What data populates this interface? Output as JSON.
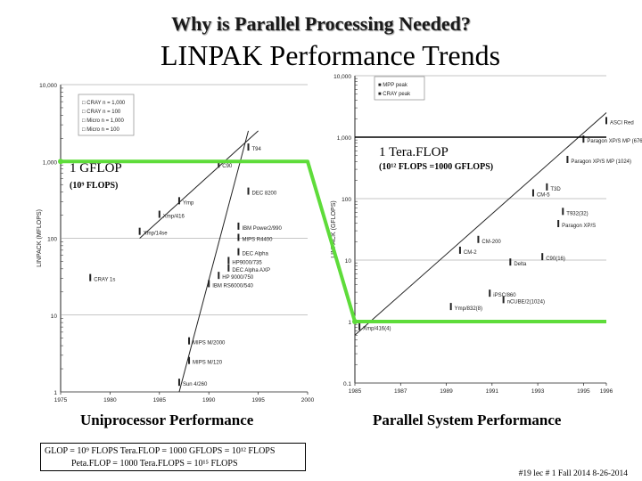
{
  "heading": "Why is Parallel Processing Needed?",
  "title": "LINPAK Performance Trends",
  "captions": {
    "uniprocessor": "Uniprocessor Performance",
    "parallel": "Parallel System Performance"
  },
  "annotations": {
    "gflop": "1 GFLOP",
    "gflop_sub": "(10⁹ FLOPS)",
    "teraflop": "1 Tera.FLOP",
    "teraflop_sub": "(10¹² FLOPS =1000 GFLOPS)"
  },
  "definitions": {
    "line1": "GLOP = 10⁹ FLOPS   Tera.FLOP = 1000  GFLOPS = 10¹² FLOPS",
    "line2": "Peta.FLOP = 1000 Tera.FLOPS = 10¹⁵ FLOPS"
  },
  "footer": "#19  lec # 1  Fall 2014  8-26-2014",
  "colors": {
    "highlight": "#5edc3a",
    "grid": "#8c8c8c",
    "ink": "#222222"
  },
  "chart_data": [
    {
      "type": "scatter",
      "id": "uniprocessor",
      "title": "Uniprocessor Performance",
      "xlabel": "",
      "ylabel": "LINPACK (MFLOPS)",
      "xscale": "linear",
      "yscale": "log",
      "xlim": [
        1975,
        2000
      ],
      "ylim": [
        1,
        10000
      ],
      "xticks": [
        1975,
        1980,
        1985,
        1990,
        1995,
        2000
      ],
      "yticks": [
        1,
        10,
        100,
        1000,
        10000
      ],
      "ytick_labels": [
        "1",
        "10",
        "100",
        "1,000",
        "10,000"
      ],
      "legend": [
        {
          "marker": "□",
          "label": "CRAY  n = 1,000"
        },
        {
          "marker": "□",
          "label": "CRAY  n = 100"
        },
        {
          "marker": "□",
          "label": "Micro  n = 1,000"
        },
        {
          "marker": "□",
          "label": "Micro  n = 100"
        }
      ],
      "points": [
        {
          "name": "CRAY 1s",
          "x": 1978,
          "y": 30
        },
        {
          "name": "Xmp/14se",
          "x": 1983,
          "y": 120
        },
        {
          "name": "Xmp/416",
          "x": 1985,
          "y": 200
        },
        {
          "name": "Ymp",
          "x": 1987,
          "y": 300
        },
        {
          "name": "C90",
          "x": 1991,
          "y": 900
        },
        {
          "name": "T94",
          "x": 1994,
          "y": 1500
        },
        {
          "name": "DEC 8200",
          "x": 1994,
          "y": 400
        },
        {
          "name": "IBM Power2/990",
          "x": 1993,
          "y": 140
        },
        {
          "name": "MIPS R4400",
          "x": 1993,
          "y": 100
        },
        {
          "name": "DEC Alpha",
          "x": 1993,
          "y": 65
        },
        {
          "name": "HP9000/735",
          "x": 1992,
          "y": 50
        },
        {
          "name": "DEC Alpha AXP",
          "x": 1992,
          "y": 40
        },
        {
          "name": "HP 9000/750",
          "x": 1991,
          "y": 32
        },
        {
          "name": "IBM RS6000/540",
          "x": 1990,
          "y": 25
        },
        {
          "name": "MIPS M/2000",
          "x": 1988,
          "y": 4.5
        },
        {
          "name": "MIPS M/120",
          "x": 1988,
          "y": 2.5
        },
        {
          "name": "Sun 4/260",
          "x": 1987,
          "y": 1.3
        }
      ],
      "trend_lines": [
        {
          "x": [
            1983,
            1995
          ],
          "y": [
            100,
            2500
          ]
        },
        {
          "x": [
            1987,
            1994
          ],
          "y": [
            1,
            2500
          ]
        }
      ]
    },
    {
      "type": "scatter",
      "id": "parallel",
      "title": "Parallel System Performance",
      "xlabel": "",
      "ylabel": "LINPACK (GFLOPS)",
      "xscale": "linear",
      "yscale": "log",
      "xlim": [
        1985,
        1996
      ],
      "ylim": [
        0.1,
        10000
      ],
      "xticks": [
        1985,
        1987,
        1989,
        1991,
        1993,
        1995,
        1996
      ],
      "yticks": [
        0.1,
        1,
        10,
        100,
        1000,
        10000
      ],
      "ytick_labels": [
        "0.1",
        "1",
        "10",
        "100",
        "1,000",
        "10,000"
      ],
      "legend": [
        {
          "marker": "■",
          "label": "MPP peak"
        },
        {
          "marker": "■",
          "label": "CRAY peak"
        }
      ],
      "points": [
        {
          "name": "ASCI Red",
          "x": 1996,
          "y": 1800
        },
        {
          "name": "Paragon XP/S MP (6768)",
          "x": 1995,
          "y": 900
        },
        {
          "name": "Paragon XP/S MP (1024)",
          "x": 1994.3,
          "y": 420
        },
        {
          "name": "T3D",
          "x": 1993.4,
          "y": 150
        },
        {
          "name": "CM-5",
          "x": 1992.8,
          "y": 120
        },
        {
          "name": "T932(32)",
          "x": 1994.1,
          "y": 60
        },
        {
          "name": "Paragon XP/S",
          "x": 1993.9,
          "y": 38
        },
        {
          "name": "CM-200",
          "x": 1990.4,
          "y": 21
        },
        {
          "name": "CM-2",
          "x": 1989.6,
          "y": 14
        },
        {
          "name": "C90(16)",
          "x": 1993.2,
          "y": 11
        },
        {
          "name": "Delta",
          "x": 1991.8,
          "y": 9
        },
        {
          "name": "iPSC/860",
          "x": 1990.9,
          "y": 2.8
        },
        {
          "name": "nCUBE/2(1024)",
          "x": 1991.5,
          "y": 2.2
        },
        {
          "name": "Ymp/832(8)",
          "x": 1989.2,
          "y": 1.7
        },
        {
          "name": "Xmp/416(4)",
          "x": 1985.2,
          "y": 0.8
        }
      ],
      "trend_lines": [
        {
          "x": [
            1985,
            1996
          ],
          "y": [
            0.6,
            2500
          ]
        }
      ]
    }
  ],
  "highlight_path": [
    {
      "label": "1 GFLOP line start",
      "x": 1975,
      "y": 1000,
      "panel": "uniprocessor"
    },
    {
      "label": "1 GFLOP line end",
      "x": 2000,
      "y": 1000,
      "panel": "uniprocessor"
    },
    {
      "label": "parallel 1 GFLOP",
      "x": 1985,
      "y": 1,
      "panel": "parallel"
    },
    {
      "label": "parallel line end",
      "x": 1996,
      "y": 1,
      "panel": "parallel"
    },
    {
      "label": "1 Tera.FLOP",
      "x": 1985,
      "y": 1000,
      "panel": "parallel"
    },
    {
      "label": "1 Tera.FLOP end",
      "x": 1996,
      "y": 1000,
      "panel": "parallel"
    }
  ]
}
